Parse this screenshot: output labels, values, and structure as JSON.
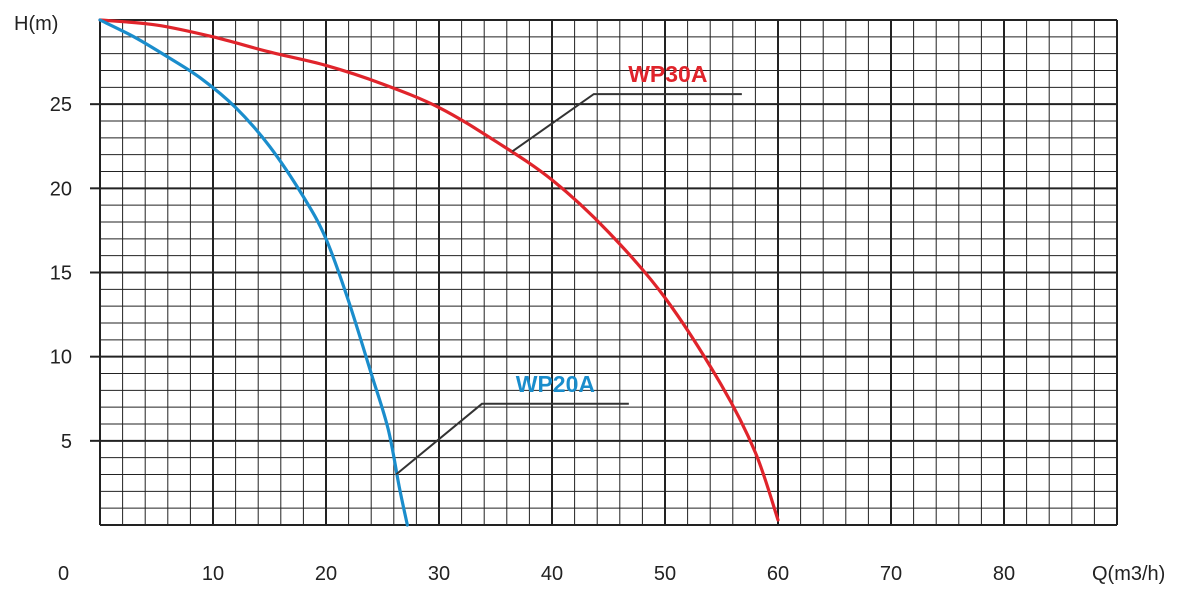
{
  "chart_data": {
    "type": "line",
    "title": "",
    "xlabel": "Q(m3/h)",
    "ylabel": "H(m)",
    "xlim": [
      0,
      90
    ],
    "ylim": [
      0,
      30
    ],
    "x_ticks": [
      10,
      20,
      30,
      40,
      50,
      60,
      70,
      80
    ],
    "x_tick_labels": [
      "10",
      "20",
      "30",
      "40",
      "50",
      "60",
      "70",
      "80"
    ],
    "y_ticks": [
      5,
      10,
      15,
      20,
      25
    ],
    "y_tick_labels": [
      "5",
      "10",
      "15",
      "20",
      "25"
    ],
    "origin_label": "0",
    "grid": true,
    "grid_minor_x_step": 2,
    "grid_minor_y_step": 1,
    "legend": "none",
    "series": [
      {
        "name": "WP30A",
        "color": "#e0242b",
        "x": [
          0,
          5,
          10,
          15,
          20,
          25,
          30,
          35,
          40,
          45,
          50,
          55,
          58,
          60
        ],
        "y": [
          30,
          29.7,
          29.0,
          28.1,
          27.3,
          26.2,
          24.8,
          22.8,
          20.5,
          17.4,
          13.5,
          8.3,
          4.3,
          0.3
        ]
      },
      {
        "name": "WP20A",
        "color": "#1a8dcc",
        "x": [
          0,
          3,
          6,
          9,
          12,
          15,
          18,
          20,
          22,
          24,
          25.5,
          26.5,
          27.2
        ],
        "y": [
          30,
          29.0,
          27.8,
          26.5,
          24.8,
          22.5,
          19.5,
          17.0,
          13.3,
          9.0,
          5.7,
          2.2,
          0
        ]
      }
    ],
    "annotations": [
      {
        "series": "WP30A",
        "text": "WP30A",
        "point": [
          36.5,
          22.2
        ],
        "elbow": [
          43.7,
          25.6
        ],
        "end": [
          56.8,
          25.6
        ]
      },
      {
        "series": "WP20A",
        "text": "WP20A",
        "point": [
          26.2,
          3.0
        ],
        "elbow": [
          33.8,
          7.2
        ],
        "end": [
          46.8,
          7.2
        ]
      }
    ]
  }
}
